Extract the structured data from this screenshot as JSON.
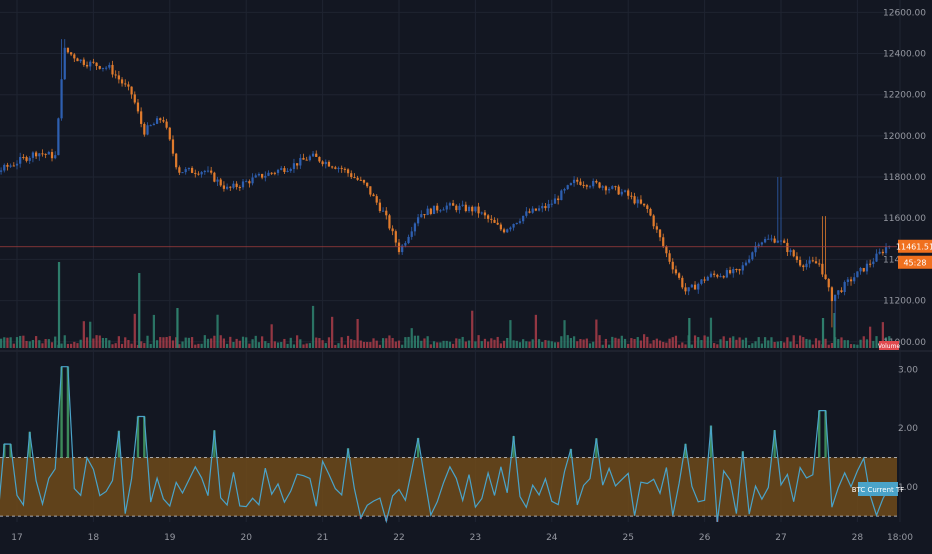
{
  "colors": {
    "background": "#131722",
    "grid": "#1f2431",
    "axis_text": "#9598a1",
    "candle_up": "#2e5fb0",
    "candle_down": "#e07b2d",
    "volume_up": "#2e7d6b",
    "volume_down": "#a33b47",
    "price_line": "#a23c3c",
    "band_fill": "#6e4a1a",
    "band_line": "#cfd3dc",
    "indicator_line": "#4aa3c9",
    "hist_up": "#3d8a5a",
    "hist_down": "#9a3a48",
    "last_price_label": "#f0701e",
    "volume_label": "#e0494f",
    "indicator_label": "#4aa3c9"
  },
  "chart_data": [
    {
      "type": "candlestick",
      "name": "price",
      "ylim": [
        10960,
        12660
      ],
      "y_ticks": [
        "12600.00",
        "12400.00",
        "12200.00",
        "12000.00",
        "11800.00",
        "11600.00",
        "11400.00",
        "11200.00",
        "11000.00"
      ],
      "x_ticks": [
        "17",
        "18",
        "19",
        "20",
        "21",
        "22",
        "23",
        "24",
        "25",
        "26",
        "27",
        "28",
        "18:00"
      ],
      "last_price": "11461.51",
      "last_price_secondary": "45:28",
      "volume_badge": "Volume",
      "waypoints": [
        {
          "day": 16.0,
          "price": 11860
        },
        {
          "day": 16.5,
          "price": 11900
        },
        {
          "day": 16.75,
          "price": 11820
        },
        {
          "day": 17.3,
          "price": 11920
        },
        {
          "day": 17.55,
          "price": 11900
        },
        {
          "day": 17.65,
          "price": 12420
        },
        {
          "day": 17.9,
          "price": 12360
        },
        {
          "day": 18.25,
          "price": 12330
        },
        {
          "day": 18.55,
          "price": 12200
        },
        {
          "day": 18.7,
          "price": 12020
        },
        {
          "day": 18.95,
          "price": 12090
        },
        {
          "day": 19.15,
          "price": 11830
        },
        {
          "day": 19.5,
          "price": 11830
        },
        {
          "day": 19.8,
          "price": 11740
        },
        {
          "day": 20.2,
          "price": 11800
        },
        {
          "day": 20.6,
          "price": 11850
        },
        {
          "day": 20.9,
          "price": 11900
        },
        {
          "day": 21.3,
          "price": 11840
        },
        {
          "day": 21.6,
          "price": 11760
        },
        {
          "day": 21.85,
          "price": 11620
        },
        {
          "day": 22.05,
          "price": 11440
        },
        {
          "day": 22.3,
          "price": 11620
        },
        {
          "day": 22.65,
          "price": 11660
        },
        {
          "day": 23.05,
          "price": 11640
        },
        {
          "day": 23.4,
          "price": 11540
        },
        {
          "day": 23.7,
          "price": 11620
        },
        {
          "day": 24.0,
          "price": 11660
        },
        {
          "day": 24.35,
          "price": 11780
        },
        {
          "day": 24.7,
          "price": 11760
        },
        {
          "day": 25.0,
          "price": 11720
        },
        {
          "day": 25.3,
          "price": 11640
        },
        {
          "day": 25.55,
          "price": 11420
        },
        {
          "day": 25.8,
          "price": 11240
        },
        {
          "day": 26.1,
          "price": 11320
        },
        {
          "day": 26.5,
          "price": 11340
        },
        {
          "day": 26.75,
          "price": 11490
        },
        {
          "day": 27.0,
          "price": 11500
        },
        {
          "day": 27.3,
          "price": 11380
        },
        {
          "day": 27.55,
          "price": 11380
        },
        {
          "day": 27.7,
          "price": 11210
        },
        {
          "day": 27.95,
          "price": 11300
        },
        {
          "day": 28.2,
          "price": 11380
        },
        {
          "day": 28.45,
          "price": 11470
        }
      ]
    },
    {
      "type": "oscillator",
      "name": "indicator",
      "ylim": [
        0.4,
        3.3
      ],
      "y_ticks": [
        "3.00",
        "2.00",
        "1.00"
      ],
      "band": [
        0.5,
        1.5
      ],
      "label": "BTC Current TF"
    }
  ]
}
